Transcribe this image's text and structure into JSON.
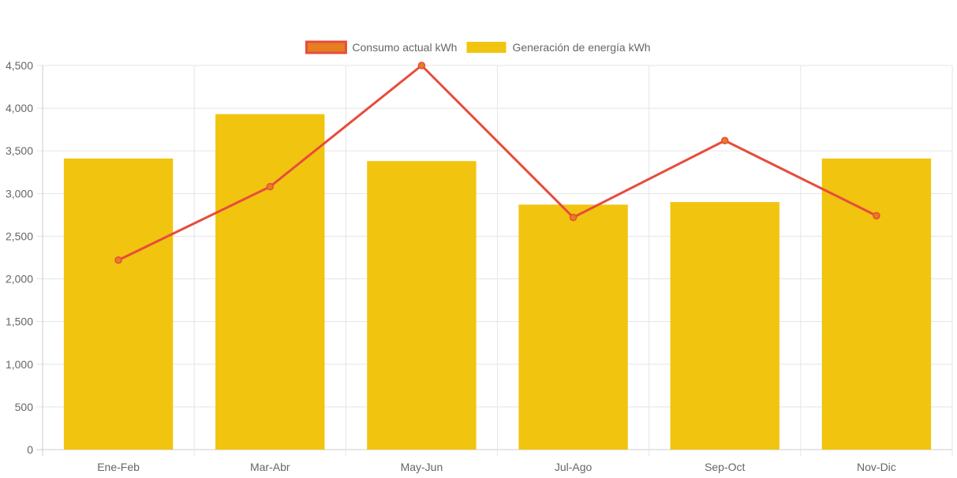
{
  "chart_data": {
    "type": "bar",
    "categories": [
      "Ene-Feb",
      "Mar-Abr",
      "May-Jun",
      "Jul-Ago",
      "Sep-Oct",
      "Nov-Dic"
    ],
    "series": [
      {
        "name": "Consumo actual kWh",
        "type": "line",
        "values": [
          2220,
          3080,
          4500,
          2720,
          3620,
          2740
        ],
        "color": "#e74c3c",
        "point_color": "#e67e22"
      },
      {
        "name": "Generación de energía kWh",
        "type": "bar",
        "values": [
          3410,
          3930,
          3380,
          2870,
          2900,
          3410
        ],
        "color": "#f1c40f"
      }
    ],
    "ylim": [
      0,
      4500
    ],
    "yticks": [
      0,
      500,
      1000,
      1500,
      2000,
      2500,
      3000,
      3500,
      4000,
      4500
    ],
    "ytick_labels": [
      "0",
      "500",
      "1,000",
      "1,500",
      "2,000",
      "2,500",
      "3,000",
      "3,500",
      "4,000",
      "4,500"
    ],
    "grid": true,
    "legend_position": "top"
  }
}
